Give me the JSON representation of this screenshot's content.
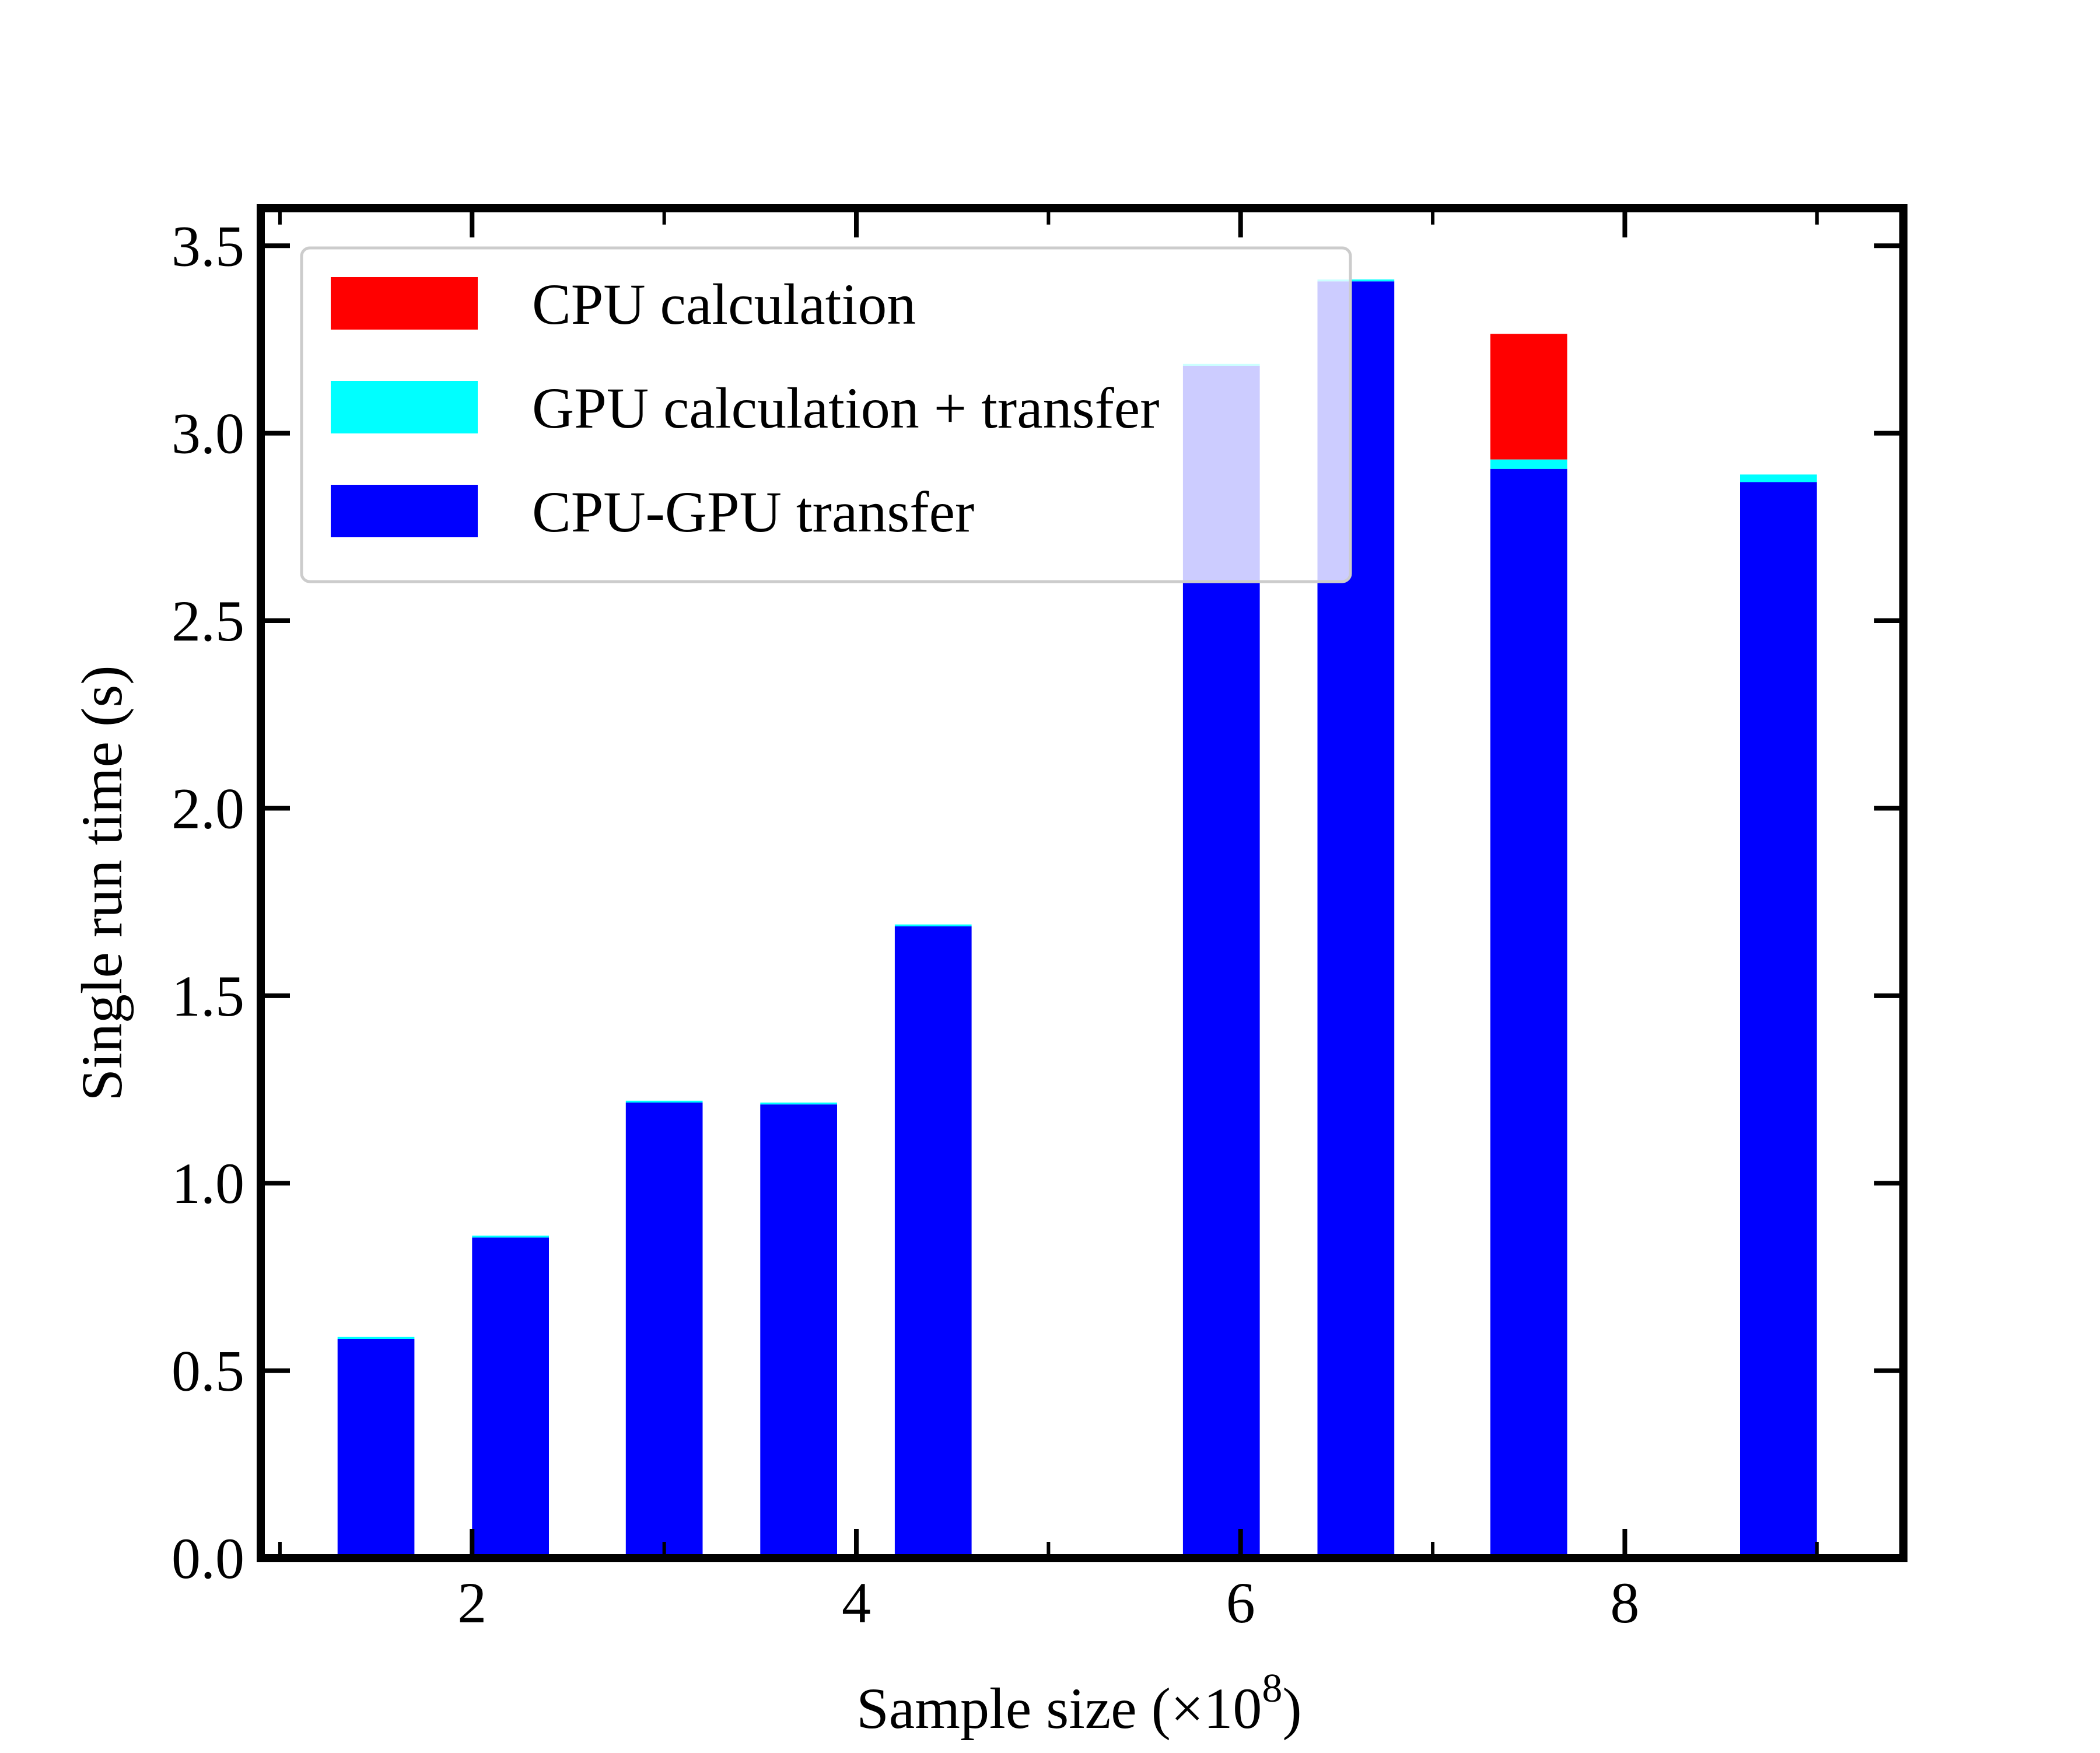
{
  "chart_data": {
    "type": "bar",
    "stacked": true,
    "title": "",
    "xlabel": "Sample size (",
    "xlabel_multiplier": "×10",
    "xlabel_exponent": "8",
    "xlabel_close": ")",
    "ylabel": "Single run time (s)",
    "xlim": [
      0.9,
      9.45
    ],
    "ylim": [
      0.0,
      3.6
    ],
    "xticks": [
      2,
      4,
      6,
      8
    ],
    "xtick_labels": [
      "2",
      "4",
      "6",
      "8"
    ],
    "yticks": [
      0.0,
      0.5,
      1.0,
      1.5,
      2.0,
      2.5,
      3.0,
      3.5
    ],
    "ytick_labels": [
      "0.0",
      "0.5",
      "1.0",
      "1.5",
      "2.0",
      "2.5",
      "3.0",
      "3.5"
    ],
    "x": [
      1.5,
      2.2,
      3.0,
      3.7,
      4.4,
      5.9,
      6.6,
      7.5,
      8.8
    ],
    "bar_width": 0.4,
    "series": [
      {
        "name": "CPU-GPU transfer",
        "color": "#0000ff",
        "values": [
          0.585,
          0.855,
          1.215,
          1.21,
          1.685,
          3.18,
          3.405,
          2.905,
          2.87
        ]
      },
      {
        "name": "GPU calculation + transfer",
        "color": "#00ffff",
        "values": [
          0.005,
          0.005,
          0.005,
          0.005,
          0.005,
          0.005,
          0.005,
          0.025,
          0.02
        ]
      },
      {
        "name": "CPU calculation",
        "color": "#ff0000",
        "values": [
          0,
          0,
          0,
          0,
          0,
          0,
          0,
          0.335,
          0
        ]
      }
    ],
    "legend": {
      "placement": "upper-left",
      "entries": [
        {
          "label": "CPU calculation",
          "color": "#ff0000"
        },
        {
          "label": "GPU calculation + transfer",
          "color": "#00ffff"
        },
        {
          "label": "CPU-GPU transfer",
          "color": "#0000ff"
        }
      ]
    },
    "grid": false
  }
}
